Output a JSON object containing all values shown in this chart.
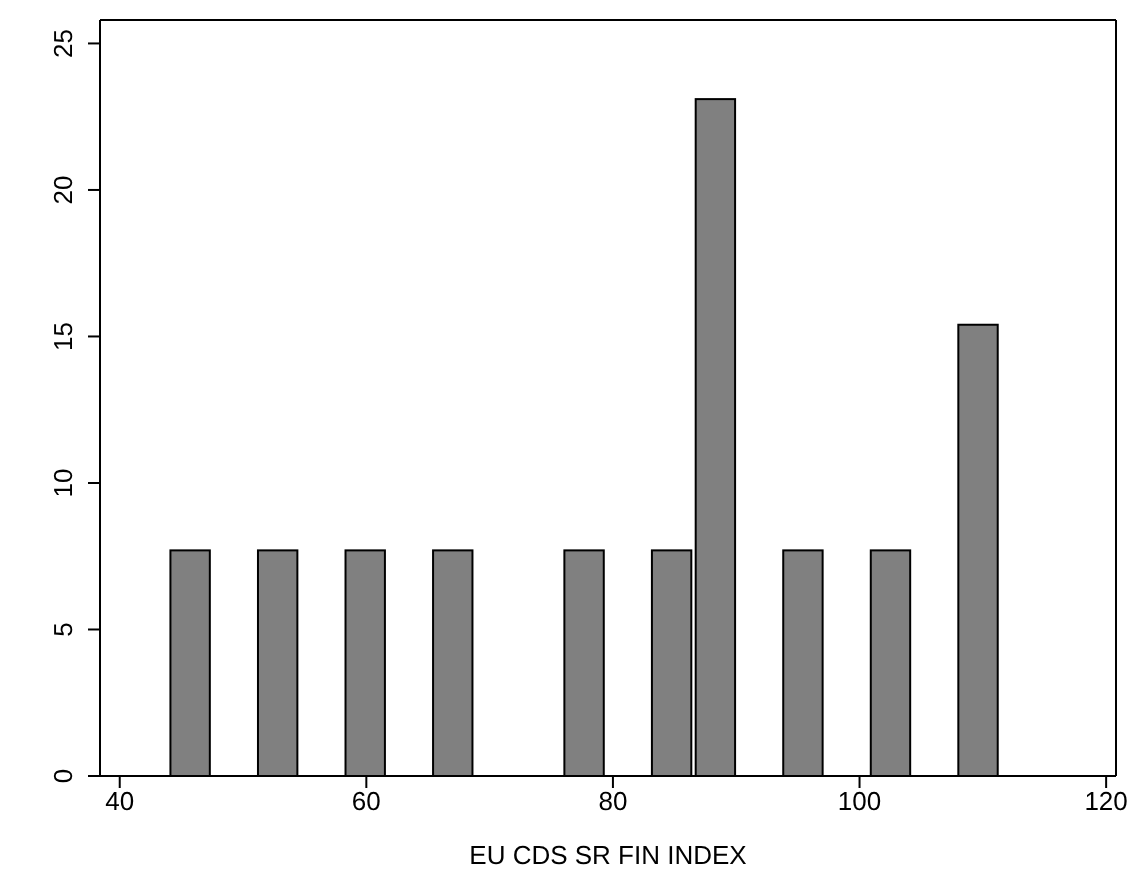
{
  "chart_data": {
    "type": "histogram",
    "xlabel": "EU CDS SR FIN INDEX",
    "bins": [
      43.95,
      47.5,
      51.05,
      54.6,
      58.15,
      61.7,
      65.25,
      68.8,
      72.35,
      75.9,
      79.45,
      83.0,
      86.55,
      90.1,
      93.65,
      97.2,
      100.75,
      104.3,
      107.85,
      111.4
    ],
    "values": [
      7.7,
      0,
      7.7,
      0,
      7.7,
      0,
      7.7,
      0,
      0,
      7.7,
      0,
      7.7,
      23.1,
      0,
      7.7,
      0,
      7.7,
      0,
      15.4
    ],
    "color": "#808080",
    "xlim": [
      38.4,
      120.8
    ],
    "xticks": [
      40,
      60,
      80,
      100,
      120
    ],
    "ylim": [
      0,
      25.8
    ],
    "yticks": [
      0,
      5,
      10,
      15,
      20,
      25
    ],
    "grid": false,
    "legend": false
  }
}
